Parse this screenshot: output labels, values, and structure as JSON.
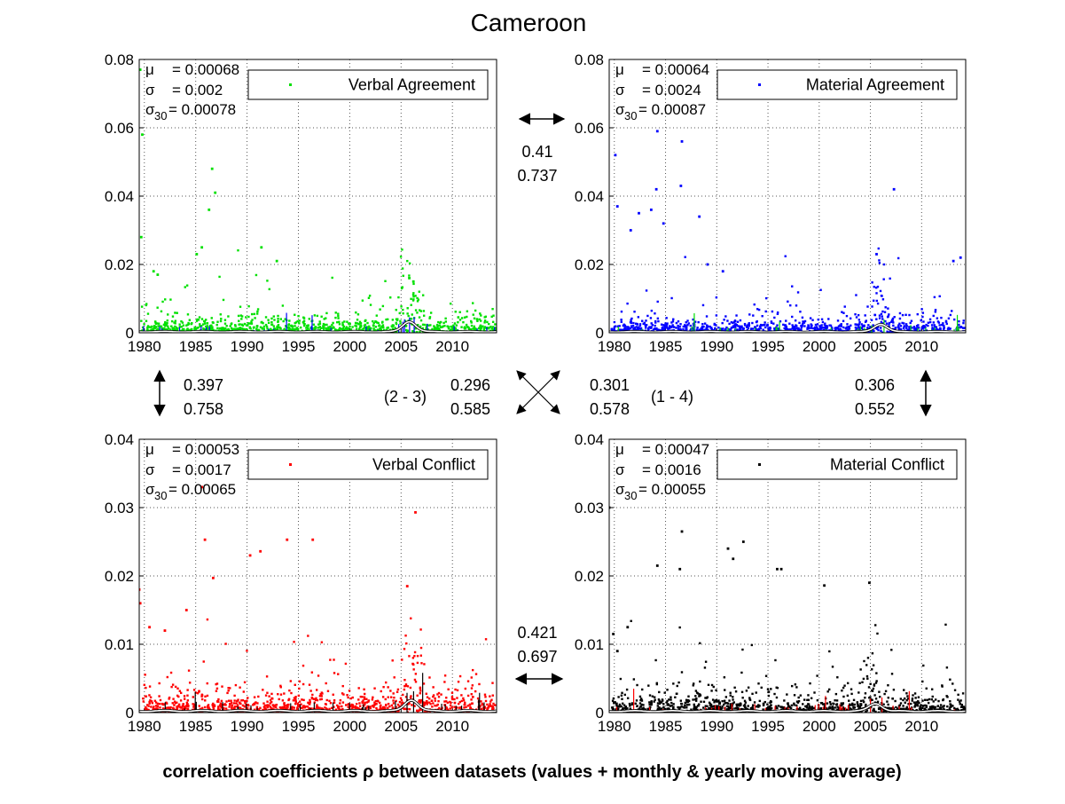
{
  "figure": {
    "title": "Cameroon",
    "footer": "correlation coefficients ρ between datasets (values + monthly & yearly moving average)"
  },
  "colors": {
    "verbal_agreement": "#00e000",
    "material_agreement": "#0000ff",
    "verbal_conflict": "#ff0000",
    "material_conflict": "#000000",
    "yearly_avg": "#ffffff"
  },
  "correlations": {
    "top": {
      "v1": "0.41",
      "v2": "0.737"
    },
    "left": {
      "v1": "0.397",
      "v2": "0.758"
    },
    "right": {
      "v1": "0.306",
      "v2": "0.552"
    },
    "diag_23": {
      "label": "(2 - 3)",
      "v1": "0.296",
      "v2": "0.585"
    },
    "diag_14": {
      "label": "(1 - 4)",
      "v1": "0.301",
      "v2": "0.578"
    },
    "bottom": {
      "v1": "0.421",
      "v2": "0.697"
    }
  },
  "chart_data": [
    {
      "type": "scatter",
      "legend": "Verbal Agreement",
      "color": "#00e000",
      "overlay_color": "#0000ff",
      "stats": {
        "mu": "= 0.00068",
        "sigma": "= 0.002",
        "sigma30": "= 0.00078"
      },
      "xlim": [
        1979.5,
        2014.3
      ],
      "ylim": [
        0,
        0.08
      ],
      "yticks": [
        "0",
        "0.02",
        "0.04",
        "0.06",
        "0.08"
      ],
      "xticks": [
        "1980",
        "1985",
        "1990",
        "1995",
        "2000",
        "2005",
        "2010"
      ],
      "baseline": 0.00068,
      "peak_year": 2005.8,
      "peak_height": 0.004,
      "seed": 11,
      "outliers": [
        [
          1979.6,
          0.077
        ],
        [
          1979.8,
          0.058
        ],
        [
          1979.7,
          0.028
        ],
        [
          1986.6,
          0.048
        ],
        [
          1986.9,
          0.041
        ],
        [
          1986.3,
          0.036
        ],
        [
          1985.6,
          0.025
        ],
        [
          1991.4,
          0.025
        ],
        [
          1992.9,
          0.021
        ],
        [
          1985.1,
          0.023
        ],
        [
          1980.9,
          0.018
        ],
        [
          1981.3,
          0.017
        ],
        [
          2005.8,
          0.016
        ],
        [
          2006.2,
          0.015
        ]
      ]
    },
    {
      "type": "scatter",
      "legend": "Material Agreement",
      "color": "#0000ff",
      "overlay_color": "#00e000",
      "stats": {
        "mu": "= 0.00064",
        "sigma": "= 0.0024",
        "sigma30": "= 0.00087"
      },
      "xlim": [
        1979.5,
        2014.3
      ],
      "ylim": [
        0,
        0.08
      ],
      "yticks": [
        "0",
        "0.02",
        "0.04",
        "0.06",
        "0.08"
      ],
      "xticks": [
        "1980",
        "1985",
        "1990",
        "1995",
        "2000",
        "2005",
        "2010"
      ],
      "baseline": 0.00064,
      "peak_year": 2006.0,
      "peak_height": 0.003,
      "seed": 23,
      "outliers": [
        [
          1984.2,
          0.059
        ],
        [
          1986.6,
          0.056
        ],
        [
          1980.1,
          0.052
        ],
        [
          1986.5,
          0.043
        ],
        [
          1984.1,
          0.042
        ],
        [
          2007.3,
          0.042
        ],
        [
          1980.3,
          0.037
        ],
        [
          1982.4,
          0.035
        ],
        [
          1983.6,
          0.036
        ],
        [
          1988.3,
          0.034
        ],
        [
          1981.6,
          0.03
        ],
        [
          1984.8,
          0.032
        ],
        [
          1989.1,
          0.02
        ],
        [
          2013.1,
          0.021
        ],
        [
          2013.8,
          0.022
        ],
        [
          1990.6,
          0.018
        ],
        [
          2005.6,
          0.023
        ]
      ]
    },
    {
      "type": "scatter",
      "legend": "Verbal Conflict",
      "color": "#ff0000",
      "overlay_color": "#000000",
      "stats": {
        "mu": "= 0.00053",
        "sigma": "= 0.0017",
        "sigma30": "= 0.00065"
      },
      "xlim": [
        1979.5,
        2014.3
      ],
      "ylim": [
        0,
        0.04
      ],
      "yticks": [
        "0",
        "0.01",
        "0.02",
        "0.03",
        "0.04"
      ],
      "xticks": [
        "1980",
        "1985",
        "1990",
        "1995",
        "2000",
        "2005",
        "2010"
      ],
      "baseline": 0.00053,
      "peak_year": 2006.0,
      "peak_height": 0.0022,
      "seed": 37,
      "outliers": [
        [
          1979.5,
          0.018
        ],
        [
          1979.6,
          0.016
        ],
        [
          1985.6,
          0.033
        ],
        [
          1985.9,
          0.0253
        ],
        [
          1986.7,
          0.0197
        ],
        [
          1990.3,
          0.023
        ],
        [
          1991.3,
          0.0236
        ],
        [
          1993.9,
          0.0253
        ],
        [
          1996.4,
          0.0253
        ],
        [
          2005.6,
          0.0185
        ],
        [
          2006.4,
          0.0293
        ],
        [
          1984.1,
          0.015
        ],
        [
          1982.0,
          0.012
        ],
        [
          1980.5,
          0.0125
        ]
      ]
    },
    {
      "type": "scatter",
      "legend": "Material Conflict",
      "color": "#000000",
      "overlay_color": "#ff0000",
      "stats": {
        "mu": "= 0.00047",
        "sigma": "= 0.0016",
        "sigma30": "= 0.00055"
      },
      "xlim": [
        1979.5,
        2014.3
      ],
      "ylim": [
        0,
        0.04
      ],
      "yticks": [
        "0",
        "0.01",
        "0.02",
        "0.03",
        "0.04"
      ],
      "xticks": [
        "1980",
        "1985",
        "1990",
        "1995",
        "2000",
        "2005",
        "2010"
      ],
      "baseline": 0.00047,
      "peak_year": 2005.5,
      "peak_height": 0.0015,
      "seed": 53,
      "outliers": [
        [
          1979.5,
          0.03
        ],
        [
          1986.6,
          0.0265
        ],
        [
          1986.4,
          0.021
        ],
        [
          1984.2,
          0.0215
        ],
        [
          1991.1,
          0.024
        ],
        [
          1992.6,
          0.025
        ],
        [
          1991.6,
          0.0225
        ],
        [
          1995.9,
          0.021
        ],
        [
          1996.3,
          0.021
        ],
        [
          2000.5,
          0.0186
        ],
        [
          2004.9,
          0.019
        ],
        [
          1979.9,
          0.0115
        ],
        [
          1981.3,
          0.0125
        ],
        [
          1980.3,
          0.009
        ]
      ]
    }
  ]
}
